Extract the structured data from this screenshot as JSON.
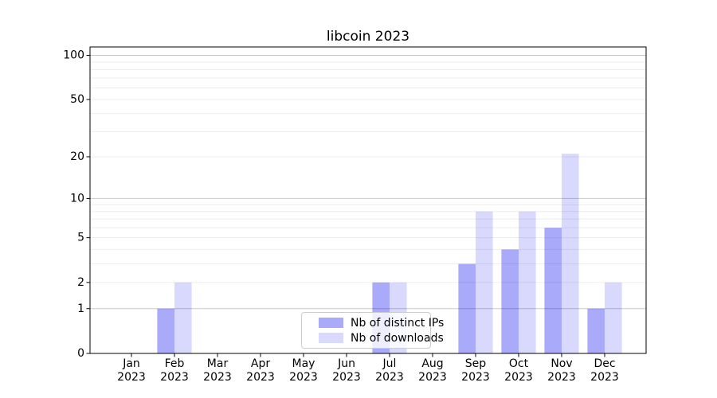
{
  "figure": {
    "background": "#ffffff"
  },
  "chart_data": {
    "type": "bar",
    "title": "libcoin 2023",
    "categories": [
      "Jan",
      "Feb",
      "Mar",
      "Apr",
      "May",
      "Jun",
      "Jul",
      "Aug",
      "Sep",
      "Oct",
      "Nov",
      "Dec"
    ],
    "category_year": "2023",
    "series": [
      {
        "name": "Nb of distinct IPs",
        "color": "rgba(0,0,240,0.335)",
        "values": [
          0,
          1,
          0,
          0,
          0,
          0,
          2,
          0,
          3,
          4,
          6,
          1
        ]
      },
      {
        "name": "Nb of downloads",
        "color": "rgba(0,0,240,0.148)",
        "values": [
          0,
          2,
          0,
          0,
          0,
          0,
          2,
          0,
          8,
          8,
          21,
          2
        ]
      }
    ],
    "xlabel": "",
    "ylabel": "",
    "yscale": "log1p",
    "ylim": [
      0,
      114
    ],
    "y_ticks": [
      0,
      1,
      2,
      5,
      10,
      20,
      50,
      100
    ],
    "y_gridlines_major": [
      1,
      10,
      100
    ],
    "y_gridlines_minor": [
      2,
      3,
      4,
      5,
      6,
      7,
      8,
      9,
      20,
      30,
      40,
      50,
      60,
      70,
      80,
      90
    ],
    "grid": "horizontal",
    "legend_position": "inside-bottom-center"
  },
  "colors": {
    "grid_major": "#c8c8c8",
    "grid_minor": "#ededed",
    "spine": "#000000",
    "tick": "#000000",
    "text": "#000000",
    "legend_border": "#cccccc",
    "legend_background": "rgba(255,255,255,0.8)"
  }
}
